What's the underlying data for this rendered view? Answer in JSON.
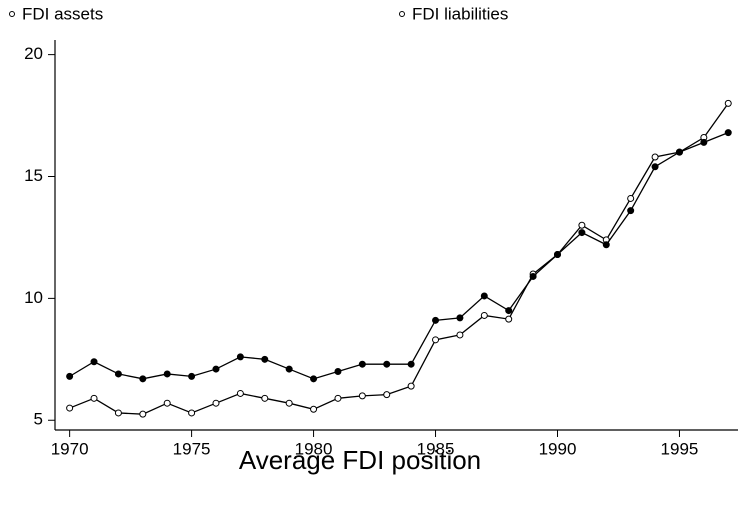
{
  "chart_data": {
    "type": "line",
    "x": [
      1970,
      1971,
      1972,
      1973,
      1974,
      1975,
      1976,
      1977,
      1978,
      1979,
      1980,
      1981,
      1982,
      1983,
      1984,
      1985,
      1986,
      1987,
      1988,
      1989,
      1990,
      1991,
      1992,
      1993,
      1994,
      1995,
      1996,
      1997
    ],
    "series": [
      {
        "name": "FDI assets",
        "color": "#000000",
        "filled": false,
        "values": [
          5.5,
          5.9,
          5.3,
          5.25,
          5.7,
          5.3,
          5.7,
          6.1,
          5.9,
          5.7,
          5.45,
          5.9,
          6.0,
          6.05,
          6.4,
          8.3,
          8.5,
          9.3,
          9.15,
          11.0,
          11.8,
          13.0,
          12.4,
          14.1,
          15.8,
          16.0,
          16.6,
          18.0
        ]
      },
      {
        "name": "FDI liabilities",
        "color": "#000000",
        "filled": true,
        "values": [
          6.8,
          7.4,
          6.9,
          6.7,
          6.9,
          6.8,
          7.1,
          7.6,
          7.5,
          7.1,
          6.7,
          7.0,
          7.3,
          7.3,
          7.3,
          9.1,
          9.2,
          10.1,
          9.5,
          10.9,
          11.8,
          12.7,
          12.2,
          13.6,
          15.4,
          16.0,
          16.4,
          16.8
        ]
      }
    ],
    "xlabel": "Average FDI position",
    "xlim": [
      1969.4,
      1997.4
    ],
    "xticks": [
      1970,
      1975,
      1980,
      1985,
      1990,
      1995
    ],
    "ylim": [
      4.6,
      20.6
    ],
    "yticks": [
      5,
      10,
      15,
      20
    ]
  }
}
